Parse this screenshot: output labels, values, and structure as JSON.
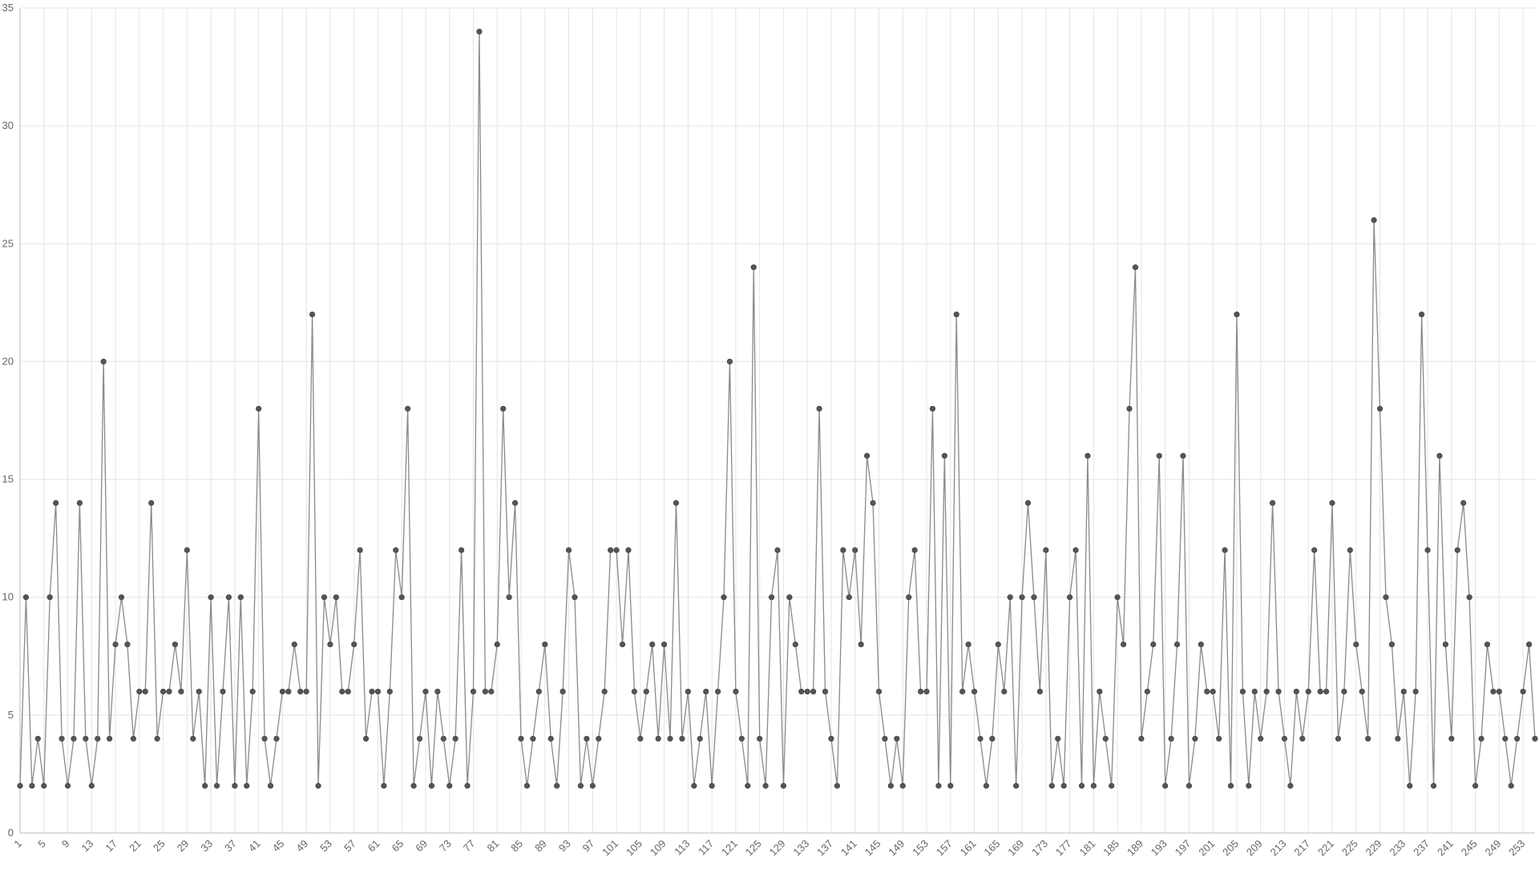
{
  "chart_data": {
    "type": "line",
    "title": "",
    "xlabel": "",
    "ylabel": "",
    "grid": true,
    "legend": "none",
    "colors": {
      "line": "#8a8a8a",
      "point_fill": "#555555",
      "point_stroke": "#444444",
      "grid": "#e4e4e4",
      "axis": "#bbbbbb",
      "tick_text": "#666666"
    },
    "ylim": [
      0,
      35
    ],
    "yticks": [
      0,
      5,
      10,
      15,
      20,
      25,
      30,
      35
    ],
    "x_start": 1,
    "x_end": 256,
    "x_tick_step": 4,
    "values": [
      2,
      10,
      2,
      4,
      2,
      10,
      14,
      4,
      2,
      4,
      14,
      4,
      2,
      4,
      20,
      4,
      8,
      10,
      8,
      4,
      6,
      6,
      14,
      4,
      6,
      6,
      8,
      6,
      12,
      4,
      6,
      2,
      10,
      2,
      6,
      10,
      2,
      10,
      2,
      6,
      18,
      4,
      2,
      4,
      6,
      6,
      8,
      6,
      6,
      22,
      2,
      10,
      8,
      10,
      6,
      6,
      8,
      12,
      4,
      6,
      6,
      2,
      6,
      12,
      10,
      18,
      2,
      4,
      6,
      2,
      6,
      4,
      2,
      4,
      12,
      2,
      6,
      34,
      6,
      6,
      8,
      18,
      10,
      14,
      4,
      2,
      4,
      6,
      8,
      4,
      2,
      6,
      12,
      10,
      2,
      4,
      2,
      4,
      6,
      12,
      12,
      8,
      12,
      6,
      4,
      6,
      8,
      4,
      8,
      4,
      14,
      4,
      6,
      2,
      4,
      6,
      2,
      6,
      10,
      20,
      6,
      4,
      2,
      24,
      4,
      2,
      10,
      12,
      2,
      10,
      8,
      6,
      6,
      6,
      18,
      6,
      4,
      2,
      12,
      10,
      12,
      8,
      16,
      14,
      6,
      4,
      2,
      4,
      2,
      10,
      12,
      6,
      6,
      18,
      2,
      16,
      2,
      22,
      6,
      8,
      6,
      4,
      2,
      4,
      8,
      6,
      10,
      2,
      10,
      14,
      10,
      6,
      12,
      2,
      4,
      2,
      10,
      12,
      2,
      16,
      2,
      6,
      4,
      2,
      10,
      8,
      18,
      24,
      4,
      6,
      8,
      16,
      2,
      4,
      8,
      16,
      2,
      4,
      8,
      6,
      6,
      4,
      12,
      2,
      22,
      6,
      2,
      6,
      4,
      6,
      14,
      6,
      4,
      2,
      6,
      4,
      6,
      12,
      6,
      6,
      14,
      4,
      6,
      12,
      8,
      6,
      4,
      26,
      18,
      10,
      8,
      4,
      6,
      2,
      6,
      22,
      12,
      2,
      16,
      8,
      4,
      12,
      14,
      10,
      2,
      4,
      8,
      6,
      6,
      4,
      2,
      4,
      6,
      8,
      4
    ]
  }
}
